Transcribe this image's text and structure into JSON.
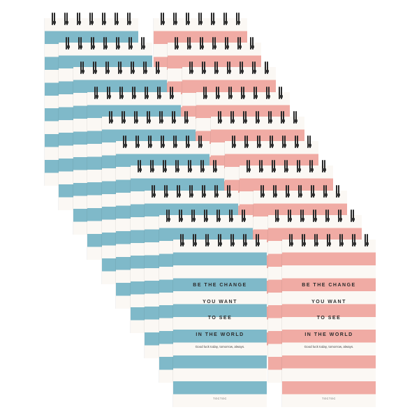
{
  "cover": {
    "line1": "BE THE CHANGE",
    "line2": "YOU WANT",
    "line3": "TO SEE",
    "line4": "IN THE WORLD",
    "tagline": "Good luck today, tomorrow, always.",
    "brand": "TOCTOC"
  },
  "colors": {
    "blue_stripe": "#7fb9c9",
    "pink_stripe": "#f0aba4",
    "paper": "#fbf8f4",
    "ring": "#2a2a2a"
  },
  "stacks": [
    {
      "name": "blue-notepad-stack",
      "color": "blue",
      "count": 10
    },
    {
      "name": "pink-notepad-stack",
      "color": "pink",
      "count": 10
    }
  ]
}
